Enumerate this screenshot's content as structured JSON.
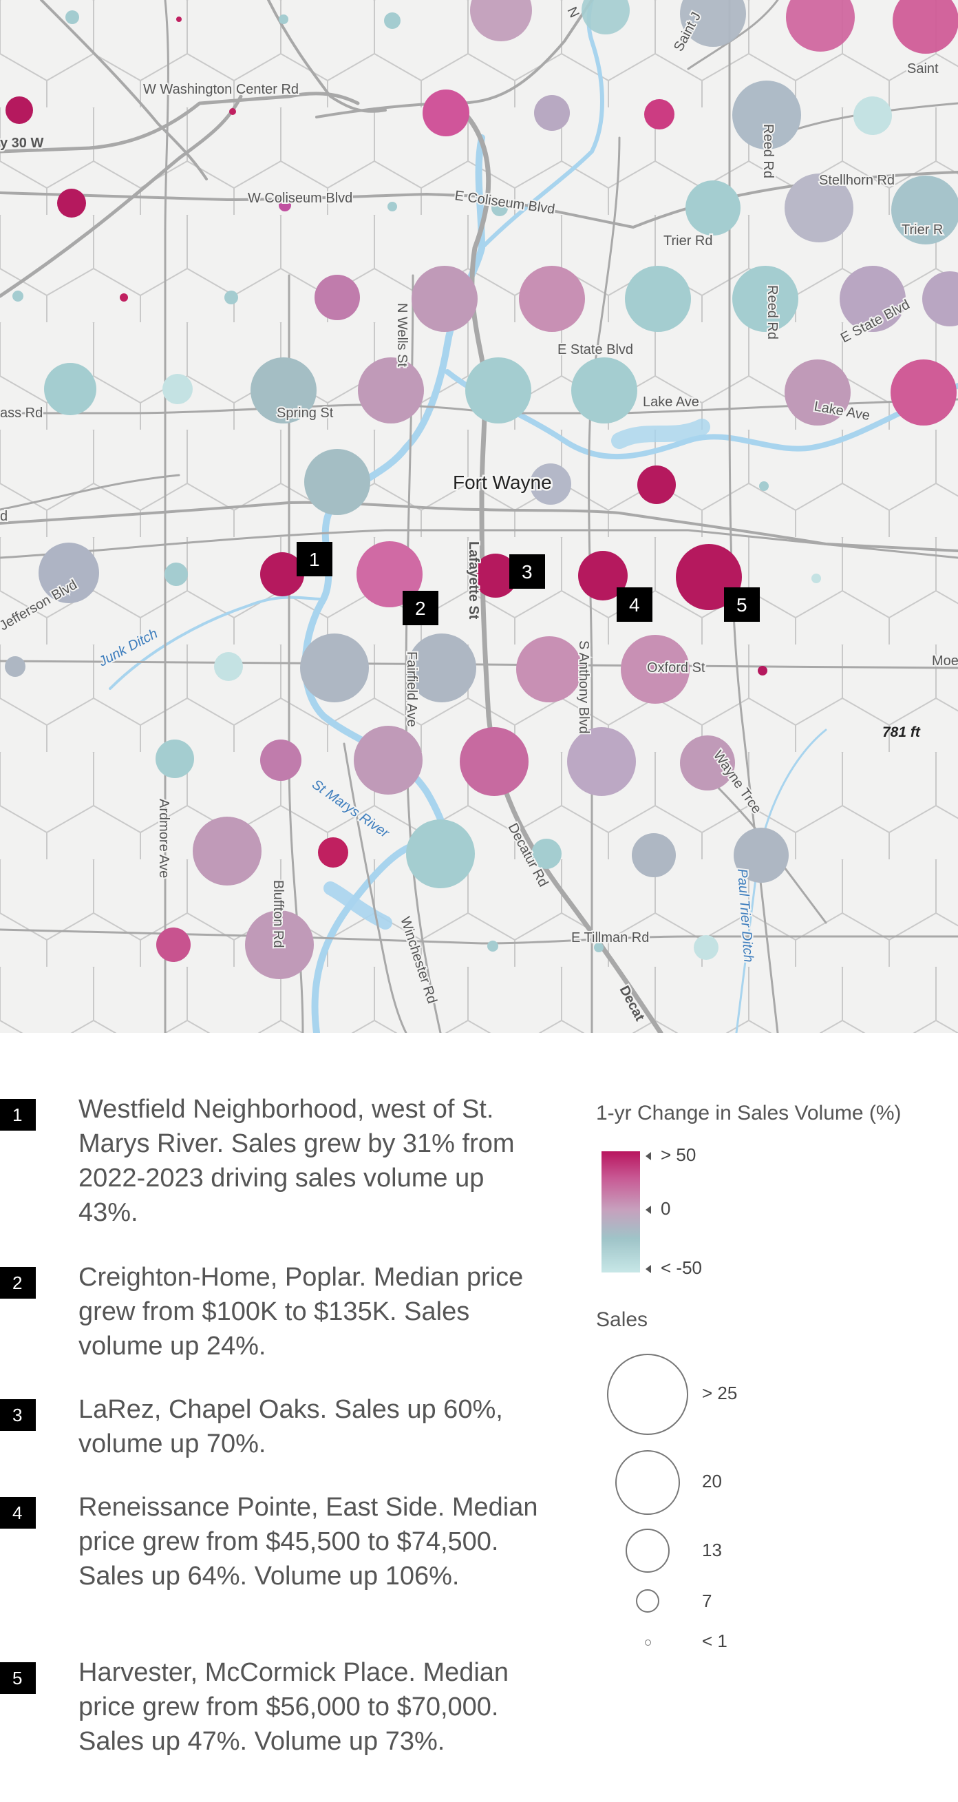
{
  "map": {
    "city_label": "Fort Wayne",
    "elevation_label": "781 ft",
    "road_labels": [
      "W Washington Center Rd",
      "y 30 W",
      "W Coliseum Blvd",
      "E Coliseum Blvd",
      "Trier Rd",
      "Stellhorn Rd",
      "Trier R",
      "Reed Rd",
      "Reed Rd",
      "Saint J",
      "Saint",
      "N",
      "N Wells St",
      "E State Blvd",
      "E State Blvd",
      "Lake Ave",
      "Lake Ave",
      "Spring St",
      "ass Rd",
      "Jefferson Blvd",
      "Lafayette St",
      "S Anthony Blvd",
      "Oxford St",
      "Moe",
      "Fairfield Ave",
      "Ardmore Ave",
      "Bluffton Rd",
      "Winchester Rd",
      "Decatur Rd",
      "Wayne Trce",
      "E Tillman Rd",
      "Decat",
      "d"
    ],
    "water_labels": [
      "Junk Ditch",
      "St Marys River",
      "Paul Trier Ditch"
    ],
    "markers": [
      "1",
      "2",
      "3",
      "4",
      "5"
    ]
  },
  "notes": [
    {
      "number": "1",
      "text": "Westfield Neighborhood, west of St. Marys River. Sales grew by 31% from 2022-2023 driving sales volume up 43%."
    },
    {
      "number": "2",
      "text": "Creighton-Home, Poplar. Median price grew from $100K to $135K. Sales volume up 24%."
    },
    {
      "number": "3",
      "text": "LaRez, Chapel Oaks. Sales up 60%, volume up 70%."
    },
    {
      "number": "4",
      "text": "Reneissance Pointe, East Side. Median price grew from $45,500 to $74,500. Sales up 64%. Volume up 106%."
    },
    {
      "number": "5",
      "text": "Harvester, McCormick Place. Median price grew from $56,000 to $70,000. Sales up 47%. Volume up 73%."
    }
  ],
  "legend": {
    "color_title": "1-yr Change in Sales Volume (%)",
    "color_ticks": [
      "> 50",
      "0",
      "< -50"
    ],
    "color_ramp": [
      "#b8155e",
      "#c85994",
      "#c7a0bd",
      "#9fc4c8",
      "#c7e7e7"
    ],
    "size_title": "Sales",
    "size_labels": [
      "> 25",
      "20",
      "13",
      "7",
      "< 1"
    ]
  },
  "colors": {
    "water": "#a8d4ee",
    "roads": "#a8a8a8",
    "hex_grid": "#c9c9c9",
    "marker": "#000000"
  }
}
